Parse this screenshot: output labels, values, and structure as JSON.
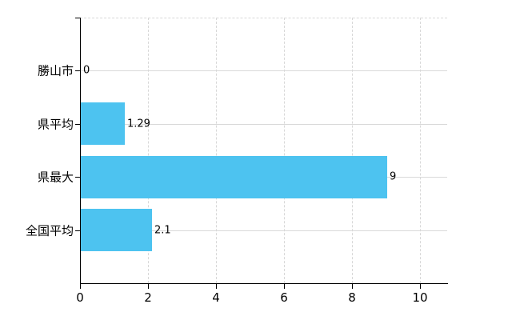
{
  "chart_data": {
    "type": "bar",
    "orientation": "horizontal",
    "title": "",
    "xlabel": "",
    "ylabel": "",
    "categories": [
      "勝山市",
      "県平均",
      "県最大",
      "全国平均"
    ],
    "values": [
      0,
      1.29,
      9,
      2.1
    ],
    "value_labels": [
      "0",
      "1.29",
      "9",
      "2.1"
    ],
    "x_ticks": [
      0,
      2,
      4,
      6,
      8,
      10
    ],
    "x_tick_labels": [
      "0",
      "2",
      "4",
      "6",
      "8",
      "10"
    ],
    "xlim": [
      0,
      10.8
    ],
    "grid": "horizontal solid at category rows, vertical dashed at x ticks",
    "legend": false,
    "colors": {
      "bar": "#4dc3f0",
      "gridline": "#d9d9d9",
      "axis": "#000000",
      "text": "#000000",
      "background": "#ffffff"
    }
  }
}
